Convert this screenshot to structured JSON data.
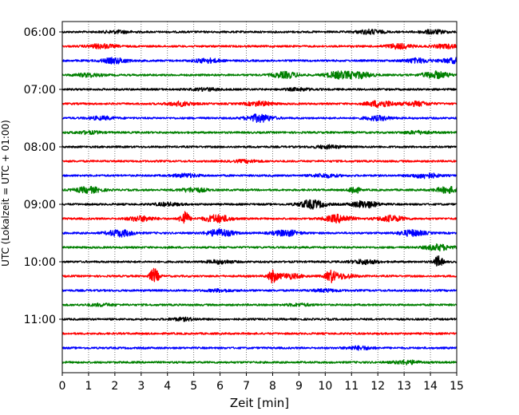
{
  "chart_data": {
    "type": "line",
    "title": "",
    "xlabel": "Zeit  [min]",
    "ylabel": "UTC (Lokalzeit = UTC + 01:00)",
    "xlim": [
      0,
      15
    ],
    "x_ticks": [
      "0",
      "1",
      "2",
      "3",
      "4",
      "5",
      "6",
      "7",
      "8",
      "9",
      "10",
      "11",
      "12",
      "13",
      "14",
      "15"
    ],
    "y_ticks": [
      "06:00",
      "07:00",
      "08:00",
      "09:00",
      "10:00",
      "11:00"
    ],
    "grid": "vertical dotted",
    "legend": "none",
    "trace_colors": [
      "#000000",
      "#ff0000",
      "#0000ff",
      "#008000"
    ],
    "row_interval_minutes": 15,
    "traces": [
      {
        "start": "06:00",
        "color": "#000000",
        "events": [
          [
            2.1,
            1.5
          ],
          [
            11.7,
            2.5
          ],
          [
            14.1,
            2.2
          ]
        ]
      },
      {
        "start": "06:15",
        "color": "#ff0000",
        "events": [
          [
            1.5,
            2.5
          ],
          [
            12.8,
            2.8
          ],
          [
            14.6,
            2.2
          ]
        ]
      },
      {
        "start": "06:30",
        "color": "#0000ff",
        "events": [
          [
            2.0,
            3.2
          ],
          [
            5.5,
            2.5
          ],
          [
            13.5,
            2.5
          ],
          [
            14.9,
            2.8
          ]
        ]
      },
      {
        "start": "06:45",
        "color": "#008000",
        "events": [
          [
            1.0,
            2.0
          ],
          [
            8.5,
            3.5
          ],
          [
            10.5,
            3.8
          ],
          [
            11.3,
            3.5
          ],
          [
            14.2,
            4.0
          ]
        ]
      },
      {
        "start": "07:00",
        "color": "#000000",
        "events": [
          [
            5.5,
            1.5
          ],
          [
            9.0,
            1.4
          ]
        ]
      },
      {
        "start": "07:15",
        "color": "#ff0000",
        "events": [
          [
            4.5,
            2.5
          ],
          [
            7.5,
            2.5
          ],
          [
            12.1,
            4.0
          ],
          [
            13.5,
            2.5
          ]
        ]
      },
      {
        "start": "07:30",
        "color": "#0000ff",
        "events": [
          [
            1.5,
            1.8
          ],
          [
            7.5,
            4.5
          ],
          [
            12.0,
            2.5
          ]
        ]
      },
      {
        "start": "07:45",
        "color": "#008000",
        "events": [
          [
            1.0,
            1.5
          ],
          [
            13.5,
            1.6
          ]
        ]
      },
      {
        "start": "08:00",
        "color": "#000000",
        "events": [
          [
            10.1,
            1.8
          ]
        ]
      },
      {
        "start": "08:15",
        "color": "#ff0000",
        "events": [
          [
            7.0,
            1.4
          ]
        ]
      },
      {
        "start": "08:30",
        "color": "#0000ff",
        "events": [
          [
            4.7,
            2.0
          ],
          [
            10.0,
            2.0
          ],
          [
            13.8,
            3.0
          ]
        ]
      },
      {
        "start": "08:45",
        "color": "#008000",
        "events": [
          [
            1.0,
            3.5
          ],
          [
            5.0,
            2.5
          ],
          [
            11.1,
            5.5
          ],
          [
            14.7,
            3.5
          ]
        ]
      },
      {
        "start": "09:00",
        "color": "#000000",
        "events": [
          [
            4.0,
            1.8
          ],
          [
            9.5,
            5.0
          ],
          [
            11.5,
            4.0
          ]
        ]
      },
      {
        "start": "09:15",
        "color": "#ff0000",
        "events": [
          [
            3.0,
            3.0
          ],
          [
            4.65,
            9.0
          ],
          [
            5.9,
            4.5
          ],
          [
            10.5,
            4.5
          ],
          [
            12.5,
            3.5
          ]
        ]
      },
      {
        "start": "09:30",
        "color": "#0000ff",
        "events": [
          [
            2.2,
            4.0
          ],
          [
            6.0,
            4.5
          ],
          [
            8.5,
            3.5
          ],
          [
            13.3,
            3.5
          ]
        ]
      },
      {
        "start": "09:45",
        "color": "#008000",
        "events": [
          [
            14.3,
            3.5
          ]
        ]
      },
      {
        "start": "10:00",
        "color": "#000000",
        "events": [
          [
            6.0,
            2.0
          ],
          [
            11.5,
            2.5
          ],
          [
            14.3,
            6.5
          ]
        ]
      },
      {
        "start": "10:15",
        "color": "#ff0000",
        "events": [
          [
            3.5,
            9.0
          ],
          [
            8.0,
            7.0
          ],
          [
            8.6,
            3.0
          ],
          [
            10.2,
            6.0
          ],
          [
            10.6,
            3.0
          ]
        ]
      },
      {
        "start": "10:30",
        "color": "#0000ff",
        "events": [
          [
            6.0,
            1.4
          ],
          [
            10.0,
            1.4
          ]
        ]
      },
      {
        "start": "10:45",
        "color": "#008000",
        "events": [
          [
            1.5,
            1.3
          ],
          [
            9.0,
            1.3
          ]
        ]
      },
      {
        "start": "11:00",
        "color": "#000000",
        "events": [
          [
            4.6,
            1.6
          ]
        ]
      },
      {
        "start": "11:15",
        "color": "#ff0000",
        "events": []
      },
      {
        "start": "11:30",
        "color": "#0000ff",
        "events": [
          [
            11.3,
            2.0
          ]
        ]
      },
      {
        "start": "11:45",
        "color": "#008000",
        "events": [
          [
            13.1,
            2.2
          ]
        ]
      }
    ]
  }
}
